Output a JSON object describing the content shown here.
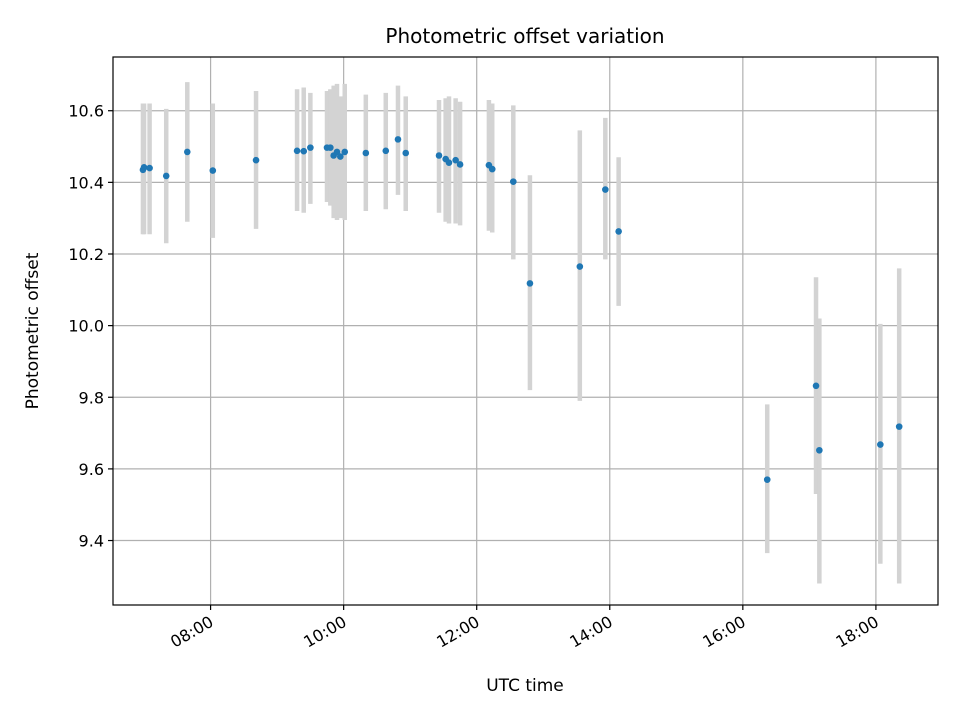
{
  "chart_data": {
    "type": "scatter",
    "title": "Photometric offset variation",
    "xlabel": "UTC time",
    "ylabel": "Photometric offset",
    "grid": true,
    "xlim": [
      "06:32",
      "18:56"
    ],
    "ylim": [
      9.22,
      10.75
    ],
    "x_ticks": [
      "08:00",
      "10:00",
      "12:00",
      "14:00",
      "16:00",
      "18:00"
    ],
    "y_ticks": [
      9.4,
      9.6,
      9.8,
      10.0,
      10.2,
      10.4,
      10.6
    ],
    "y_tick_labels": [
      "9.4",
      "9.6",
      "9.8",
      "10.0",
      "10.2",
      "10.4",
      "10.6"
    ],
    "marker_color": "#1f77b4",
    "errorbar_color": "#d3d3d3",
    "points": [
      {
        "t": "06:59",
        "y": 10.435,
        "lo": 10.255,
        "hi": 10.62
      },
      {
        "t": "07:00",
        "y": 10.442,
        "lo": 10.255,
        "hi": 10.62
      },
      {
        "t": "07:05",
        "y": 10.44,
        "lo": 10.255,
        "hi": 10.62
      },
      {
        "t": "07:20",
        "y": 10.418,
        "lo": 10.23,
        "hi": 10.605
      },
      {
        "t": "07:39",
        "y": 10.485,
        "lo": 10.29,
        "hi": 10.68
      },
      {
        "t": "08:02",
        "y": 10.433,
        "lo": 10.245,
        "hi": 10.62
      },
      {
        "t": "08:41",
        "y": 10.462,
        "lo": 10.27,
        "hi": 10.655
      },
      {
        "t": "09:18",
        "y": 10.488,
        "lo": 10.32,
        "hi": 10.66
      },
      {
        "t": "09:24",
        "y": 10.487,
        "lo": 10.315,
        "hi": 10.665
      },
      {
        "t": "09:30",
        "y": 10.497,
        "lo": 10.34,
        "hi": 10.65
      },
      {
        "t": "09:45",
        "y": 10.497,
        "lo": 10.345,
        "hi": 10.655
      },
      {
        "t": "09:48",
        "y": 10.497,
        "lo": 10.335,
        "hi": 10.66
      },
      {
        "t": "09:51",
        "y": 10.475,
        "lo": 10.3,
        "hi": 10.67
      },
      {
        "t": "09:54",
        "y": 10.485,
        "lo": 10.295,
        "hi": 10.675
      },
      {
        "t": "09:57",
        "y": 10.472,
        "lo": 10.3,
        "hi": 10.64
      },
      {
        "t": "10:01",
        "y": 10.485,
        "lo": 10.295,
        "hi": 10.675
      },
      {
        "t": "10:20",
        "y": 10.482,
        "lo": 10.32,
        "hi": 10.645
      },
      {
        "t": "10:38",
        "y": 10.488,
        "lo": 10.325,
        "hi": 10.65
      },
      {
        "t": "10:49",
        "y": 10.52,
        "lo": 10.365,
        "hi": 10.67
      },
      {
        "t": "10:56",
        "y": 10.482,
        "lo": 10.32,
        "hi": 10.64
      },
      {
        "t": "11:26",
        "y": 10.475,
        "lo": 10.315,
        "hi": 10.63
      },
      {
        "t": "11:32",
        "y": 10.465,
        "lo": 10.29,
        "hi": 10.635
      },
      {
        "t": "11:35",
        "y": 10.455,
        "lo": 10.285,
        "hi": 10.64
      },
      {
        "t": "11:41",
        "y": 10.462,
        "lo": 10.285,
        "hi": 10.635
      },
      {
        "t": "11:45",
        "y": 10.45,
        "lo": 10.28,
        "hi": 10.625
      },
      {
        "t": "12:11",
        "y": 10.448,
        "lo": 10.265,
        "hi": 10.63
      },
      {
        "t": "12:14",
        "y": 10.437,
        "lo": 10.26,
        "hi": 10.62
      },
      {
        "t": "12:33",
        "y": 10.402,
        "lo": 10.185,
        "hi": 10.615
      },
      {
        "t": "12:48",
        "y": 10.118,
        "lo": 9.82,
        "hi": 10.42
      },
      {
        "t": "13:33",
        "y": 10.165,
        "lo": 9.79,
        "hi": 10.545
      },
      {
        "t": "13:56",
        "y": 10.38,
        "lo": 10.185,
        "hi": 10.58
      },
      {
        "t": "14:08",
        "y": 10.263,
        "lo": 10.055,
        "hi": 10.47
      },
      {
        "t": "16:22",
        "y": 9.57,
        "lo": 9.365,
        "hi": 9.78
      },
      {
        "t": "17:06",
        "y": 9.832,
        "lo": 9.53,
        "hi": 10.135
      },
      {
        "t": "17:09",
        "y": 9.652,
        "lo": 9.28,
        "hi": 10.02
      },
      {
        "t": "18:04",
        "y": 9.668,
        "lo": 9.335,
        "hi": 10.005
      },
      {
        "t": "18:21",
        "y": 9.718,
        "lo": 9.28,
        "hi": 10.16
      }
    ]
  }
}
